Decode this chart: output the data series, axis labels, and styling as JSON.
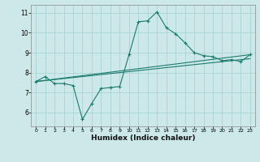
{
  "xlabel": "Humidex (Indice chaleur)",
  "background_color": "#cce8e8",
  "grid_color": "#aad4d4",
  "line_color": "#1a7a6e",
  "x_ticks": [
    0,
    1,
    2,
    3,
    4,
    5,
    6,
    7,
    8,
    9,
    10,
    11,
    12,
    13,
    14,
    15,
    16,
    17,
    18,
    19,
    20,
    21,
    22,
    23
  ],
  "y_ticks": [
    6,
    7,
    8,
    9,
    10,
    11
  ],
  "ylim": [
    5.3,
    11.4
  ],
  "xlim": [
    -0.5,
    23.5
  ],
  "line1_x": [
    0,
    1,
    2,
    3,
    4,
    5,
    6,
    7,
    8,
    9,
    10,
    11,
    12,
    13,
    14,
    15,
    16,
    17,
    18,
    19,
    20,
    21,
    22,
    23
  ],
  "line1_y": [
    7.55,
    7.8,
    7.45,
    7.45,
    7.35,
    5.65,
    6.45,
    7.2,
    7.25,
    7.3,
    8.9,
    10.55,
    10.6,
    11.05,
    10.25,
    9.95,
    9.5,
    9.0,
    8.85,
    8.8,
    8.6,
    8.65,
    8.55,
    8.9
  ],
  "line2_x": [
    0,
    23
  ],
  "line2_y": [
    7.55,
    8.9
  ],
  "line3_x": [
    0,
    1,
    2,
    3,
    4,
    5,
    6,
    7,
    8,
    9,
    10,
    11,
    12,
    13,
    14,
    15,
    16,
    17,
    18,
    19,
    20,
    21,
    22,
    23
  ],
  "line3_y": [
    7.55,
    7.6,
    7.65,
    7.7,
    7.75,
    7.8,
    7.85,
    7.9,
    7.95,
    8.0,
    8.05,
    8.1,
    8.15,
    8.2,
    8.25,
    8.3,
    8.35,
    8.4,
    8.45,
    8.5,
    8.55,
    8.6,
    8.65,
    8.7
  ]
}
